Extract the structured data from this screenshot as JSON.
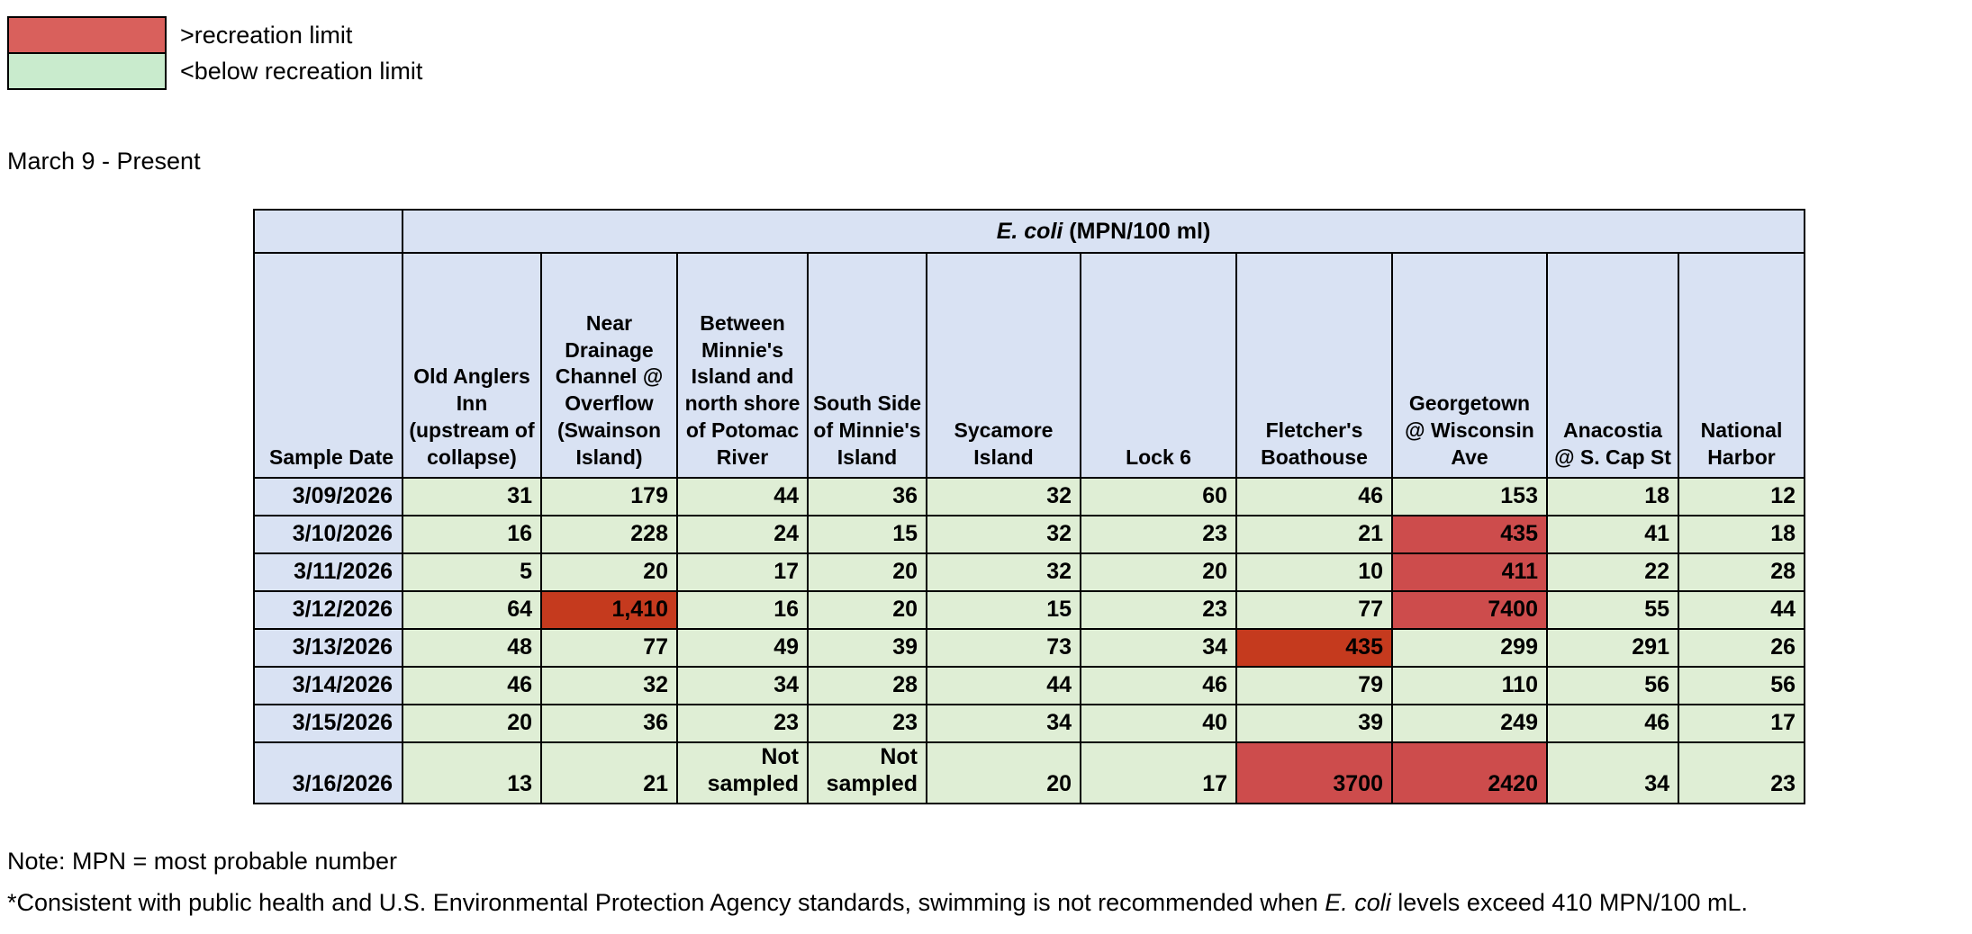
{
  "legend": {
    "items": [
      {
        "label": ">recreation limit",
        "color": "#D9605C"
      },
      {
        "label": "<below recreation limit",
        "color": "#C9EBCD"
      }
    ]
  },
  "period_label": "March 9 - Present",
  "table": {
    "title_italic": "E. coli",
    "title_rest": " (MPN/100 ml)",
    "date_header": "Sample Date",
    "columns": [
      "Old Anglers Inn (upstream of collapse)",
      "Near Drainage Channel @ Overflow (Swainson Island)",
      "Between Minnie's Island and north shore of Potomac River",
      "South Side of Minnie's Island",
      "Sycamore Island",
      "Lock 6",
      "Fletcher's Boathouse",
      "Georgetown @ Wisconsin Ave",
      "Anacostia @ S. Cap St",
      "National Harbor"
    ],
    "rows": [
      {
        "date": "3/09/2026",
        "values": [
          "31",
          "179",
          "44",
          "36",
          "32",
          "60",
          "46",
          "153",
          "18",
          "12"
        ],
        "status": [
          "g",
          "g",
          "g",
          "g",
          "g",
          "g",
          "g",
          "g",
          "g",
          "g"
        ]
      },
      {
        "date": "3/10/2026",
        "values": [
          "16",
          "228",
          "24",
          "15",
          "32",
          "23",
          "21",
          "435",
          "41",
          "18"
        ],
        "status": [
          "g",
          "g",
          "g",
          "g",
          "g",
          "g",
          "g",
          "r",
          "g",
          "g"
        ]
      },
      {
        "date": "3/11/2026",
        "values": [
          "5",
          "20",
          "17",
          "20",
          "32",
          "20",
          "10",
          "411",
          "22",
          "28"
        ],
        "status": [
          "g",
          "g",
          "g",
          "g",
          "g",
          "g",
          "g",
          "r",
          "g",
          "g"
        ]
      },
      {
        "date": "3/12/2026",
        "values": [
          "64",
          "1,410",
          "16",
          "20",
          "15",
          "23",
          "77",
          "7400",
          "55",
          "44"
        ],
        "status": [
          "g",
          "o",
          "g",
          "g",
          "g",
          "g",
          "g",
          "r",
          "g",
          "g"
        ]
      },
      {
        "date": "3/13/2026",
        "values": [
          "48",
          "77",
          "49",
          "39",
          "73",
          "34",
          "435",
          "299",
          "291",
          "26"
        ],
        "status": [
          "g",
          "g",
          "g",
          "g",
          "g",
          "g",
          "o",
          "g",
          "g",
          "g"
        ]
      },
      {
        "date": "3/14/2026",
        "values": [
          "46",
          "32",
          "34",
          "28",
          "44",
          "46",
          "79",
          "110",
          "56",
          "56"
        ],
        "status": [
          "g",
          "g",
          "g",
          "g",
          "g",
          "g",
          "g",
          "g",
          "g",
          "g"
        ]
      },
      {
        "date": "3/15/2026",
        "values": [
          "20",
          "36",
          "23",
          "23",
          "34",
          "40",
          "39",
          "249",
          "46",
          "17"
        ],
        "status": [
          "g",
          "g",
          "g",
          "g",
          "g",
          "g",
          "g",
          "g",
          "g",
          "g"
        ]
      },
      {
        "date": "3/16/2026",
        "values": [
          "13",
          "21",
          "Not sampled",
          "Not sampled",
          "20",
          "17",
          "3700",
          "2420",
          "34",
          "23"
        ],
        "status": [
          "g",
          "g",
          "g",
          "g",
          "g",
          "g",
          "r",
          "r",
          "g",
          "g"
        ]
      }
    ]
  },
  "notes": {
    "mpn": "Note: MPN = most probable number",
    "epa_prefix": "*Consistent with public health and U.S. Environmental Protection Agency standards, swimming is not recommended when ",
    "epa_italic": "E. coli",
    "epa_suffix": " levels exceed 410 MPN/100 mL."
  },
  "colors": {
    "header_fill": "#D9E2F3",
    "ok_fill": "#DFEED5",
    "red_fill": "#CD4C4C",
    "orangered_fill": "#C53A1E",
    "legend_red": "#D9605C",
    "legend_green": "#C9EBCD"
  }
}
